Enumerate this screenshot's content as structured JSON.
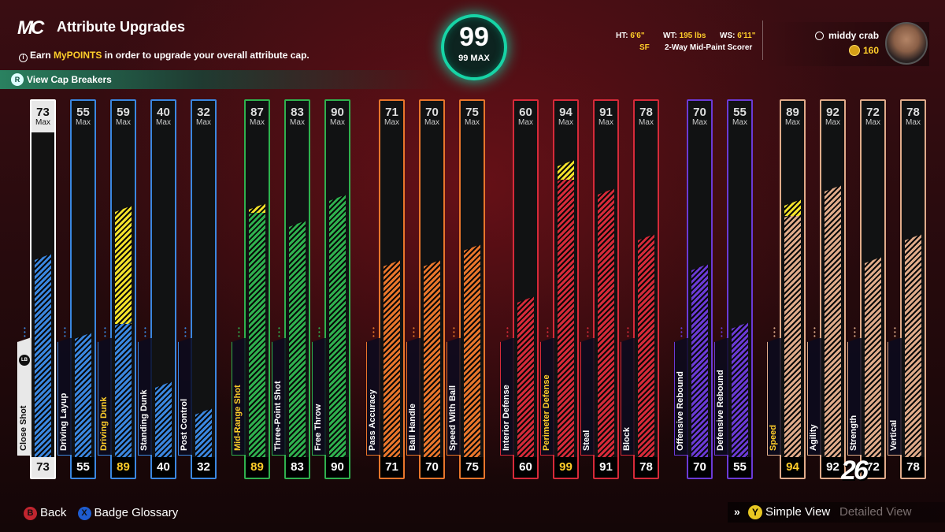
{
  "header": {
    "logo": "MC",
    "title": "Attribute Upgrades",
    "subtitle_prefix": "Earn ",
    "subtitle_highlight": "MyPOINTS",
    "subtitle_suffix": " in order to upgrade your overall attribute cap.",
    "cap_breakers_label": "View Cap Breakers",
    "cap_breakers_button": "R"
  },
  "overall": {
    "value": "99",
    "max_label": "99 MAX"
  },
  "physicals": {
    "ht_key": "HT:",
    "ht_val": "6'6\"",
    "wt_key": "WT:",
    "wt_val": "195 lbs",
    "ws_key": "WS:",
    "ws_val": "6'11\"",
    "pos": "SF",
    "archetype": "2-Way Mid-Paint Scorer"
  },
  "player": {
    "gamertag": "middy crab",
    "vc": "160"
  },
  "attributes": [
    {
      "name": "Close Shot",
      "cap": "73",
      "current": "73",
      "fill": 0.62,
      "boost": 0,
      "color": "#3a87e0",
      "gold": false,
      "selected": true
    },
    {
      "name": "Driving Layup",
      "cap": "55",
      "current": "55",
      "fill": 0.38,
      "boost": 0,
      "color": "#3a87e0",
      "gold": false
    },
    {
      "name": "Driving Dunk",
      "cap": "59",
      "current": "89",
      "fill": 0.42,
      "boost": 0.36,
      "color": "#3a87e0",
      "gold": true
    },
    {
      "name": "Standing Dunk",
      "cap": "40",
      "current": "40",
      "fill": 0.23,
      "boost": 0,
      "color": "#3a87e0",
      "gold": false
    },
    {
      "name": "Post Control",
      "cap": "32",
      "current": "32",
      "fill": 0.15,
      "boost": 0,
      "color": "#3a87e0",
      "gold": false
    },
    {
      "name": "Mid-Range Shot",
      "cap": "87",
      "current": "89",
      "fill": 0.76,
      "boost": 0.03,
      "color": "#2fb14e",
      "gold": true
    },
    {
      "name": "Three-Point Shot",
      "cap": "83",
      "current": "83",
      "fill": 0.72,
      "boost": 0,
      "color": "#2fb14e",
      "gold": false
    },
    {
      "name": "Free Throw",
      "cap": "90",
      "current": "90",
      "fill": 0.8,
      "boost": 0,
      "color": "#2fb14e",
      "gold": false
    },
    {
      "name": "Pass Accuracy",
      "cap": "71",
      "current": "71",
      "fill": 0.6,
      "boost": 0,
      "color": "#e9762b",
      "gold": false
    },
    {
      "name": "Ball Handle",
      "cap": "70",
      "current": "70",
      "fill": 0.6,
      "boost": 0,
      "color": "#e9762b",
      "gold": false
    },
    {
      "name": "Speed With Ball",
      "cap": "75",
      "current": "75",
      "fill": 0.65,
      "boost": 0,
      "color": "#e9762b",
      "gold": false
    },
    {
      "name": "Interior Defense",
      "cap": "60",
      "current": "60",
      "fill": 0.49,
      "boost": 0,
      "color": "#d62a39",
      "gold": false
    },
    {
      "name": "Perimeter Defense",
      "cap": "94",
      "current": "99",
      "fill": 0.86,
      "boost": 0.06,
      "color": "#d62a39",
      "gold": true
    },
    {
      "name": "Steal",
      "cap": "91",
      "current": "91",
      "fill": 0.82,
      "boost": 0,
      "color": "#d62a39",
      "gold": false
    },
    {
      "name": "Block",
      "cap": "78",
      "current": "78",
      "fill": 0.68,
      "boost": 0,
      "color": "#d62a39",
      "gold": false
    },
    {
      "name": "Offensive Rebound",
      "cap": "70",
      "current": "70",
      "fill": 0.59,
      "boost": 0,
      "color": "#6b3ad6",
      "gold": false
    },
    {
      "name": "Defensive Rebound",
      "cap": "55",
      "current": "55",
      "fill": 0.41,
      "boost": 0,
      "color": "#6b3ad6",
      "gold": false
    },
    {
      "name": "Speed",
      "cap": "89",
      "current": "94",
      "fill": 0.75,
      "boost": 0.05,
      "color": "#e0ab8a",
      "gold": true
    },
    {
      "name": "Agility",
      "cap": "92",
      "current": "92",
      "fill": 0.83,
      "boost": 0,
      "color": "#e0ab8a",
      "gold": false
    },
    {
      "name": "Strength",
      "cap": "72",
      "current": "72",
      "fill": 0.61,
      "boost": 0,
      "color": "#e0ab8a",
      "gold": false
    },
    {
      "name": "Vertical",
      "cap": "78",
      "current": "78",
      "fill": 0.68,
      "boost": 0,
      "color": "#e0ab8a",
      "gold": false
    }
  ],
  "max_label": "Max",
  "lb_button": "LB",
  "logo_26": "26",
  "footer": {
    "back_button": "B",
    "back_label": "Back",
    "glossary_button": "X",
    "glossary_label": "Badge Glossary",
    "chevrons": "»",
    "view_button": "Y",
    "simple_view": "Simple View",
    "detailed_view": "Detailed View"
  },
  "colors": {
    "accent_teal": "#17d4a6",
    "gold": "#ffce2a",
    "boost_yellow": "#f4e22a"
  }
}
